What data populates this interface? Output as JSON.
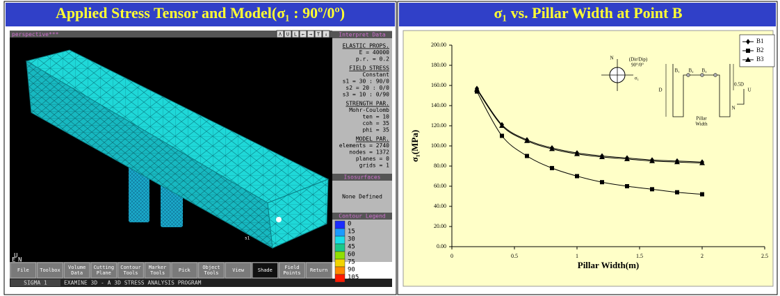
{
  "left": {
    "title": "Applied Stress Tensor and Model(σ₁ : 90º/0º)",
    "viewport_label": "perspective***",
    "window_buttons": [
      "Λ",
      "U",
      "L",
      "←",
      "→",
      "T",
      "↓"
    ],
    "axis_labels": [
      "U",
      "E",
      "N"
    ],
    "model_labels": [
      "s1"
    ],
    "interpret": {
      "title": "Interpret Data",
      "sections": [
        {
          "heading": "ELASTIC PROPS.",
          "lines": [
            "E = 40000",
            "p.r. = 0.2"
          ]
        },
        {
          "heading": "FIELD STRESS",
          "lines": [
            "Constant",
            "s1 = 30 : 90/0",
            "s2 = 20 : 0/0",
            "s3 = 10 : 0/90"
          ]
        },
        {
          "heading": "STRENGTH PAR.",
          "lines": [
            "Mohr-Coulomb",
            "ten = 10",
            "coh = 35",
            "phi = 35"
          ]
        },
        {
          "heading": "MODEL PAR.",
          "lines": [
            "elements = 2740",
            "nodes = 1372",
            "planes = 0",
            "grids = 1"
          ]
        }
      ]
    },
    "isosurfaces": {
      "title": "Isosurfaces",
      "text": "None Defined"
    },
    "contour_legend": {
      "title": "Contour Legend",
      "items": [
        {
          "label": 0,
          "color": "#1b2cff"
        },
        {
          "label": 15,
          "color": "#1a9bff"
        },
        {
          "label": 30,
          "color": "#18e0e8"
        },
        {
          "label": 45,
          "color": "#19c98a"
        },
        {
          "label": 60,
          "color": "#8fe000"
        },
        {
          "label": 75,
          "color": "#f2d400"
        },
        {
          "label": 90,
          "color": "#ff8a00"
        },
        {
          "label": 105,
          "color": "#ff1a00"
        }
      ]
    },
    "toolbar": [
      [
        "File"
      ],
      [
        "Toolbox"
      ],
      [
        "Volume",
        "Data"
      ],
      [
        "Cutting",
        "Plane"
      ],
      [
        "Contour",
        "Tools"
      ],
      [
        "Marker",
        "Tools"
      ],
      [
        "Pick"
      ],
      [
        "Object",
        "Tools"
      ],
      [
        "View"
      ],
      [
        "Shade"
      ],
      [
        "Field",
        "Points"
      ],
      [
        "Return"
      ]
    ],
    "status": [
      "SIGMA 1",
      "EXAMINE 3D - A 3D STRESS ANALYSIS PROGRAM"
    ]
  },
  "chart_data": {
    "type": "line",
    "title": "σ₁ vs. Pillar Width at Point B",
    "x_label": "Pillar Width(m)",
    "y_label": "σ₁(MPa)",
    "x": [
      0.2,
      0.4,
      0.6,
      0.8,
      1.0,
      1.2,
      1.4,
      1.6,
      1.8,
      2.0
    ],
    "series": [
      {
        "name": "B1",
        "color": "#000000",
        "marker": "diamond",
        "values": [
          157,
          121,
          106,
          98,
          93,
          90,
          88,
          86,
          85,
          84
        ]
      },
      {
        "name": "B2",
        "color": "#000000",
        "marker": "square",
        "values": [
          154,
          110,
          90,
          78,
          70,
          64,
          60,
          57,
          54,
          52
        ]
      },
      {
        "name": "B3",
        "color": "#000000",
        "marker": "triangle",
        "values": [
          156,
          120,
          105,
          97,
          92,
          89,
          87,
          85,
          84,
          83
        ]
      }
    ],
    "xlim": [
      0,
      2.5
    ],
    "xticks": [
      0,
      0.5,
      1,
      1.5,
      2,
      2.5
    ],
    "ylim": [
      0,
      200
    ],
    "yticks": [
      {
        "value": 0,
        "label": "0.00"
      },
      {
        "value": 20,
        "label": "20.00"
      },
      {
        "value": 40,
        "label": "40.00"
      },
      {
        "value": 60,
        "label": "60.00"
      },
      {
        "value": 80,
        "label": "80.00"
      },
      {
        "value": 100,
        "label": "100.00"
      },
      {
        "value": 120,
        "label": "120.00"
      },
      {
        "value": 140,
        "label": "140.00"
      },
      {
        "value": 160,
        "label": "160.00"
      },
      {
        "value": 180,
        "label": "180.00"
      },
      {
        "value": 200,
        "label": "200.00"
      }
    ],
    "legend": "top-right",
    "annotations": [
      "N",
      "(Dir/Dip)",
      "90°/0°",
      "σ₁",
      "D",
      "B₁",
      "B₂",
      "B₃",
      "0.5D",
      "Pillar",
      "Width",
      "N",
      "U"
    ]
  }
}
